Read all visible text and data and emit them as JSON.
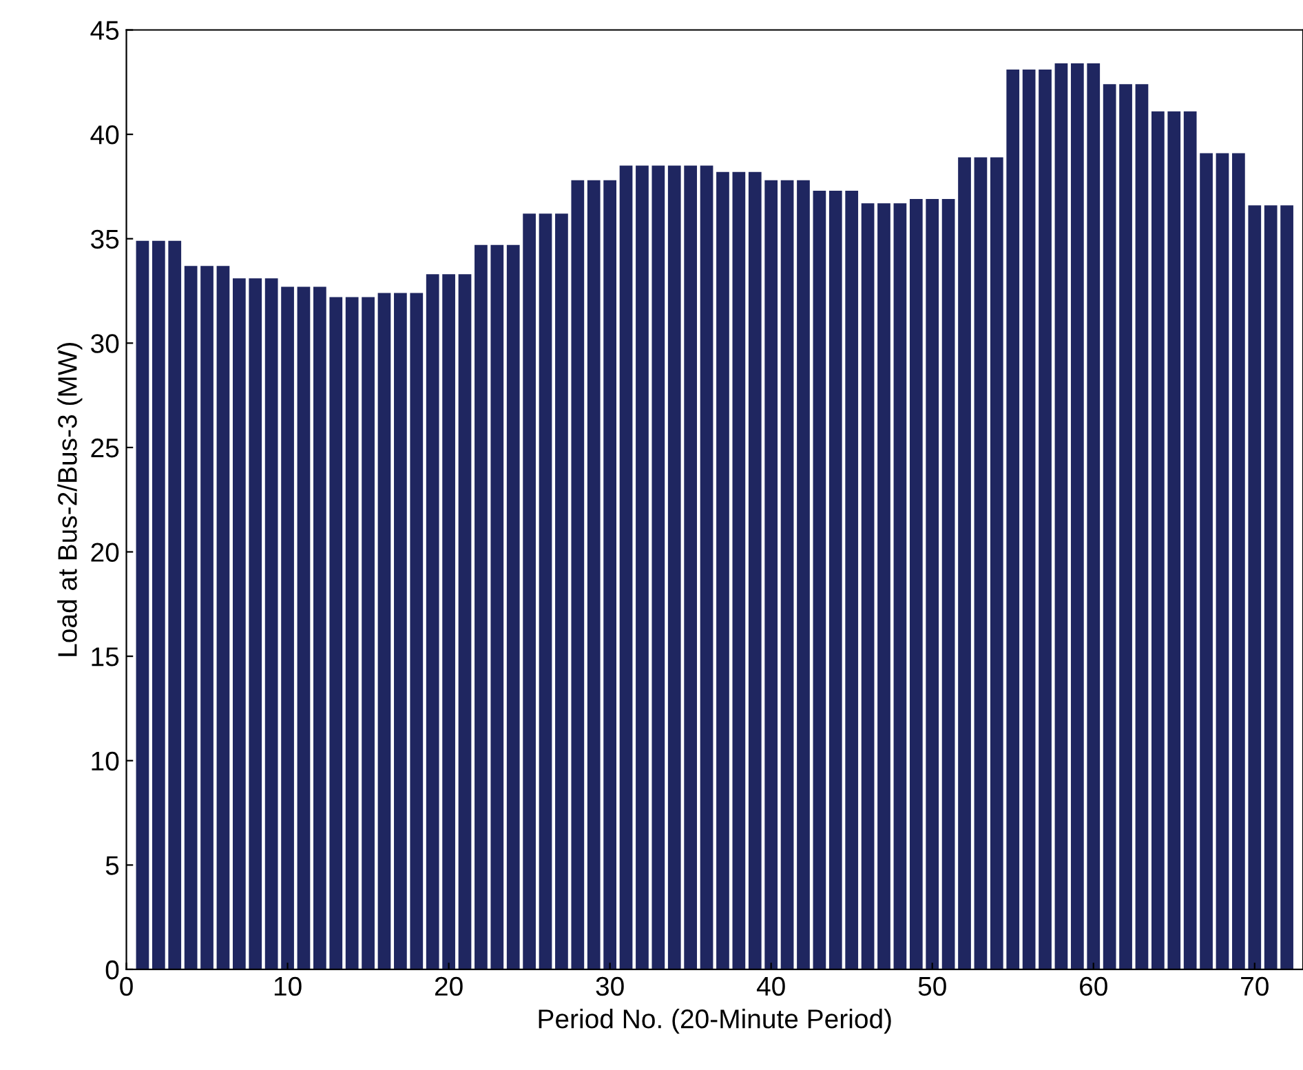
{
  "chart_data": {
    "type": "bar",
    "xlabel": "Period No. (20-Minute Period)",
    "ylabel": "Load at Bus-2/Bus-3 (MW)",
    "x": [
      1,
      2,
      3,
      4,
      5,
      6,
      7,
      8,
      9,
      10,
      11,
      12,
      13,
      14,
      15,
      16,
      17,
      18,
      19,
      20,
      21,
      22,
      23,
      24,
      25,
      26,
      27,
      28,
      29,
      30,
      31,
      32,
      33,
      34,
      35,
      36,
      37,
      38,
      39,
      40,
      41,
      42,
      43,
      44,
      45,
      46,
      47,
      48,
      49,
      50,
      51,
      52,
      53,
      54,
      55,
      56,
      57,
      58,
      59,
      60,
      61,
      62,
      63,
      64,
      65,
      66,
      67,
      68,
      69,
      70,
      71,
      72
    ],
    "values": [
      34.9,
      34.9,
      34.9,
      33.7,
      33.7,
      33.7,
      33.1,
      33.1,
      33.1,
      32.7,
      32.7,
      32.7,
      32.2,
      32.2,
      32.2,
      32.4,
      32.4,
      32.4,
      33.3,
      33.3,
      33.3,
      34.7,
      34.7,
      34.7,
      36.2,
      36.2,
      36.2,
      37.8,
      37.8,
      37.8,
      38.5,
      38.5,
      38.5,
      38.5,
      38.5,
      38.5,
      38.2,
      38.2,
      38.2,
      37.8,
      37.8,
      37.8,
      37.3,
      37.3,
      37.3,
      36.7,
      36.7,
      36.7,
      36.9,
      36.9,
      36.9,
      38.9,
      38.9,
      38.9,
      43.1,
      43.1,
      43.1,
      43.4,
      43.4,
      43.4,
      42.4,
      42.4,
      42.4,
      41.1,
      41.1,
      41.1,
      39.1,
      39.1,
      39.1,
      36.6,
      36.6,
      36.6
    ],
    "color": "#1f2660",
    "xlim": [
      0,
      73
    ],
    "xticks": [
      0,
      10,
      20,
      30,
      40,
      50,
      60,
      70
    ],
    "ylim": [
      0,
      45
    ],
    "yticks": [
      0,
      5,
      10,
      15,
      20,
      25,
      30,
      35,
      40,
      45
    ],
    "grid": false
  }
}
